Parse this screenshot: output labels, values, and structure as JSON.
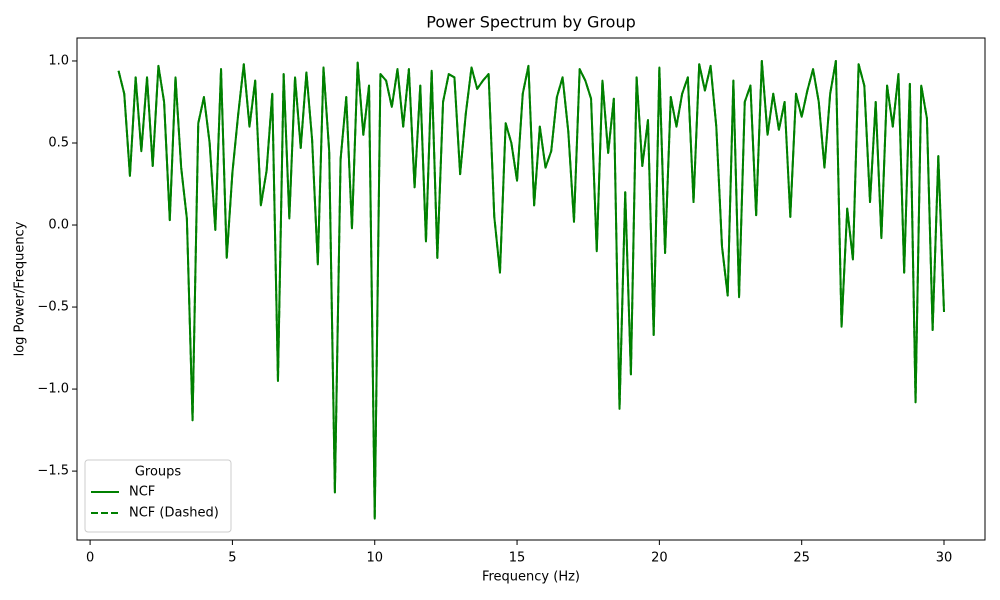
{
  "chart_data": {
    "type": "line",
    "title": "Power Spectrum by Group",
    "x_label": "Frequency (Hz)",
    "y_label": "log Power/Frequency",
    "legend_title": "Groups",
    "legend_position": "lower left",
    "x": [
      1,
      1.2,
      1.4,
      1.6,
      1.8,
      2,
      2.2,
      2.4,
      2.6,
      2.8,
      3,
      3.2,
      3.4,
      3.6,
      3.8,
      4,
      4.2,
      4.4,
      4.6,
      4.8,
      5,
      5.2,
      5.4,
      5.6,
      5.8,
      6,
      6.2,
      6.4,
      6.6,
      6.8,
      7,
      7.2,
      7.4,
      7.6,
      7.8,
      8,
      8.2,
      8.4,
      8.6,
      8.8,
      9,
      9.2,
      9.4,
      9.6,
      9.8,
      10,
      10.2,
      10.4,
      10.6,
      10.8,
      11,
      11.2,
      11.4,
      11.6,
      11.8,
      12,
      12.2,
      12.4,
      12.6,
      12.8,
      13,
      13.2,
      13.4,
      13.6,
      13.8,
      14,
      14.2,
      14.4,
      14.6,
      14.8,
      15,
      15.2,
      15.4,
      15.6,
      15.8,
      16,
      16.2,
      16.4,
      16.6,
      16.8,
      17,
      17.2,
      17.4,
      17.6,
      17.8,
      18,
      18.2,
      18.4,
      18.6,
      18.8,
      19,
      19.2,
      19.4,
      19.6,
      19.8,
      20,
      20.2,
      20.4,
      20.6,
      20.8,
      21,
      21.2,
      21.4,
      21.6,
      21.8,
      22,
      22.2,
      22.4,
      22.6,
      22.8,
      23,
      23.2,
      23.4,
      23.6,
      23.8,
      24,
      24.2,
      24.4,
      24.6,
      24.8,
      25,
      25.2,
      25.4,
      25.6,
      25.8,
      26,
      26.2,
      26.4,
      26.6,
      26.8,
      27,
      27.2,
      27.4,
      27.6,
      27.8,
      28,
      28.2,
      28.4,
      28.6,
      28.8,
      29,
      29.2,
      29.4,
      29.6,
      29.8,
      30
    ],
    "series": [
      {
        "name": "NCF",
        "color": "#008000",
        "dash": false,
        "values": [
          0.94,
          0.8,
          0.3,
          0.9,
          0.45,
          0.9,
          0.36,
          0.97,
          0.75,
          0.03,
          0.9,
          0.35,
          0.04,
          -1.19,
          0.62,
          0.78,
          0.5,
          -0.03,
          0.95,
          -0.2,
          0.32,
          0.67,
          0.98,
          0.6,
          0.88,
          0.12,
          0.33,
          0.8,
          -0.95,
          0.92,
          0.04,
          0.9,
          0.47,
          0.93,
          0.52,
          -0.24,
          0.96,
          0.45,
          -1.63,
          0.4,
          0.78,
          -0.02,
          0.99,
          0.55,
          0.85,
          -1.79,
          0.92,
          0.88,
          0.72,
          0.95,
          0.6,
          0.95,
          0.23,
          0.85,
          -0.1,
          0.94,
          -0.2,
          0.75,
          0.92,
          0.9,
          0.31,
          0.68,
          0.96,
          0.83,
          0.88,
          0.92,
          0.05,
          -0.29,
          0.62,
          0.5,
          0.27,
          0.8,
          0.97,
          0.12,
          0.6,
          0.35,
          0.45,
          0.78,
          0.9,
          0.57,
          0.02,
          0.95,
          0.88,
          0.77,
          -0.16,
          0.88,
          0.44,
          0.77,
          -1.12,
          0.2,
          -0.91,
          0.9,
          0.36,
          0.64,
          -0.67,
          0.96,
          -0.17,
          0.78,
          0.6,
          0.8,
          0.9,
          0.14,
          0.98,
          0.82,
          0.97,
          0.6,
          -0.13,
          -0.43,
          0.88,
          -0.44,
          0.75,
          0.85,
          0.06,
          1.0,
          0.55,
          0.8,
          0.58,
          0.75,
          0.05,
          0.8,
          0.66,
          0.82,
          0.95,
          0.75,
          0.35,
          0.8,
          1.0,
          -0.62,
          0.1,
          -0.21,
          0.98,
          0.85,
          0.14,
          0.75,
          -0.08,
          0.85,
          0.6,
          0.92,
          -0.29,
          0.86,
          -1.08,
          0.85,
          0.65,
          -0.64,
          0.42,
          -0.53
        ]
      },
      {
        "name": "NCF (Dashed)",
        "color": "#008000",
        "dash": true,
        "values": [
          0.94,
          0.8,
          0.3,
          0.9,
          0.45,
          0.9,
          0.36,
          0.97,
          0.75,
          0.03,
          0.9,
          0.35,
          0.04,
          -1.19,
          0.62,
          0.78,
          0.5,
          -0.03,
          0.95,
          -0.2,
          0.32,
          0.67,
          0.98,
          0.6,
          0.88,
          0.12,
          0.33,
          0.8,
          -0.95,
          0.92,
          0.04,
          0.9,
          0.47,
          0.93,
          0.52,
          -0.24,
          0.96,
          0.45,
          -1.63,
          0.4,
          0.78,
          -0.02,
          0.99,
          0.55,
          0.85,
          -1.79,
          0.92,
          0.88,
          0.72,
          0.95,
          0.6,
          0.95,
          0.23,
          0.85,
          -0.1,
          0.94,
          -0.2,
          0.75,
          0.92,
          0.9,
          0.31,
          0.68,
          0.96,
          0.83,
          0.88,
          0.92,
          0.05,
          -0.29,
          0.62,
          0.5,
          0.27,
          0.8,
          0.97,
          0.12,
          0.6,
          0.35,
          0.45,
          0.78,
          0.9,
          0.57,
          0.02,
          0.95,
          0.88,
          0.77,
          -0.16,
          0.88,
          0.44,
          0.77,
          -1.12,
          0.2,
          -0.91,
          0.9,
          0.36,
          0.64,
          -0.67,
          0.96,
          -0.17,
          0.78,
          0.6,
          0.8,
          0.9,
          0.14,
          0.98,
          0.82,
          0.97,
          0.6,
          -0.13,
          -0.43,
          0.88,
          -0.44,
          0.75,
          0.85,
          0.06,
          1.0,
          0.55,
          0.8,
          0.58,
          0.75,
          0.05,
          0.8,
          0.66,
          0.82,
          0.95,
          0.75,
          0.35,
          0.8,
          1.0,
          -0.62,
          0.1,
          -0.21,
          0.98,
          0.85,
          0.14,
          0.75,
          -0.08,
          0.85,
          0.6,
          0.92,
          -0.29,
          0.86,
          -1.08,
          0.85,
          0.65,
          -0.64,
          0.42,
          -0.53
        ]
      }
    ],
    "xlim": [
      -0.46,
      31.44
    ],
    "ylim": [
      -1.92,
      1.14
    ],
    "xticks": [
      0,
      5,
      10,
      15,
      20,
      25,
      30
    ],
    "yticks": [
      {
        "value": -1.5,
        "label": "−1.5"
      },
      {
        "value": -1.0,
        "label": "−1.0"
      },
      {
        "value": -0.5,
        "label": "−0.5"
      },
      {
        "value": 0.0,
        "label": "0.0"
      },
      {
        "value": 0.5,
        "label": "0.5"
      },
      {
        "value": 1.0,
        "label": "1.0"
      }
    ],
    "grid": false
  }
}
